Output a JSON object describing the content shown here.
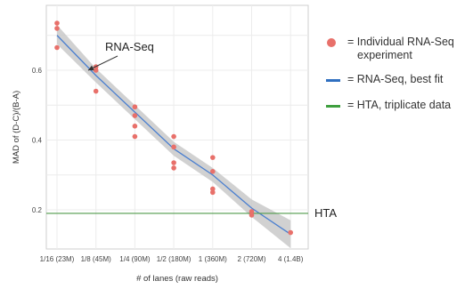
{
  "chart_data": {
    "type": "scatter",
    "xlabel": "# of lanes (raw reads)",
    "ylabel": "MAD of (D-C)/(B-A)",
    "categories": [
      "1/16 (23M)",
      "1/8 (45M)",
      "1/4 (90M)",
      "1/2 (180M)",
      "1 (360M)",
      "2 (720M)",
      "4 (1.4B)"
    ],
    "yticks": [
      "0.2",
      "0.4",
      "0.6"
    ],
    "ylim": [
      0.1,
      0.78
    ],
    "grid": true,
    "series": [
      {
        "name": "Individual RNA-Seq experiment",
        "kind": "points",
        "color": "#e8706a",
        "points": [
          {
            "x": 0,
            "y": 0.735
          },
          {
            "x": 0,
            "y": 0.72
          },
          {
            "x": 0,
            "y": 0.665
          },
          {
            "x": 1,
            "y": 0.61
          },
          {
            "x": 1,
            "y": 0.6
          },
          {
            "x": 1,
            "y": 0.54
          },
          {
            "x": 2,
            "y": 0.495
          },
          {
            "x": 2,
            "y": 0.47
          },
          {
            "x": 2,
            "y": 0.44
          },
          {
            "x": 2,
            "y": 0.41
          },
          {
            "x": 3,
            "y": 0.41
          },
          {
            "x": 3,
            "y": 0.38
          },
          {
            "x": 3,
            "y": 0.335
          },
          {
            "x": 3,
            "y": 0.32
          },
          {
            "x": 4,
            "y": 0.35
          },
          {
            "x": 4,
            "y": 0.31
          },
          {
            "x": 4,
            "y": 0.26
          },
          {
            "x": 4,
            "y": 0.25
          },
          {
            "x": 5,
            "y": 0.195
          },
          {
            "x": 5,
            "y": 0.185
          },
          {
            "x": 6,
            "y": 0.135
          }
        ]
      },
      {
        "name": "RNA-Seq, best fit",
        "kind": "line",
        "color": "#4a7fd0",
        "band_color": "#c9c9c9",
        "points": [
          {
            "x": 0,
            "y": 0.7,
            "lo": 0.675,
            "hi": 0.73
          },
          {
            "x": 1,
            "y": 0.585,
            "lo": 0.565,
            "hi": 0.605
          },
          {
            "x": 2,
            "y": 0.48,
            "lo": 0.46,
            "hi": 0.5
          },
          {
            "x": 3,
            "y": 0.375,
            "lo": 0.355,
            "hi": 0.395
          },
          {
            "x": 4,
            "y": 0.3,
            "lo": 0.28,
            "hi": 0.32
          },
          {
            "x": 5,
            "y": 0.205,
            "lo": 0.18,
            "hi": 0.23
          },
          {
            "x": 6,
            "y": 0.13,
            "lo": 0.09,
            "hi": 0.17
          }
        ]
      },
      {
        "name": "HTA, triplicate data",
        "kind": "hline",
        "color": "#4f9a4a",
        "y": 0.19
      }
    ],
    "annotations": [
      {
        "text": "RNA-Seq",
        "arrow_to": {
          "x": 0.8,
          "y": 0.6
        }
      },
      {
        "text": "HTA",
        "y": 0.19
      }
    ]
  },
  "legend": {
    "items": [
      {
        "symbol": "dot",
        "color": "#e8706a",
        "line1": "= Individual RNA-Seq",
        "line2": "experiment"
      },
      {
        "symbol": "line",
        "color": "#2f6fc0",
        "line1": "= RNA-Seq, best fit",
        "line2": ""
      },
      {
        "symbol": "line",
        "color": "#3f9f3f",
        "line1": "= HTA, triplicate data",
        "line2": ""
      }
    ]
  }
}
